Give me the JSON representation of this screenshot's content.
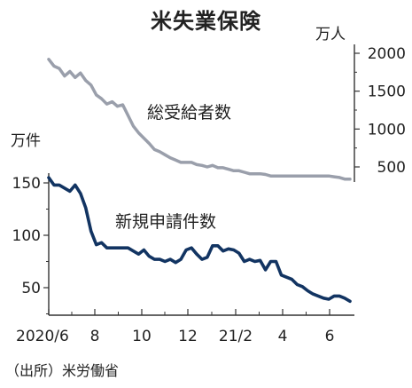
{
  "chart_data": {
    "type": "line",
    "title": "米失業保険",
    "source": "（出所）米労働省",
    "x_tick_labels": [
      "2020/6",
      "8",
      "10",
      "12",
      "21/2",
      "4",
      "6"
    ],
    "left_axis": {
      "unit": "万件",
      "ticks": [
        50,
        100,
        150
      ],
      "ylim": [
        30,
        165
      ]
    },
    "right_axis": {
      "unit": "万人",
      "ticks": [
        500,
        1000,
        1500,
        2000
      ],
      "ylim": [
        180,
        2080
      ]
    },
    "series": [
      {
        "name": "総受給者数",
        "axis": "right",
        "color": "#9a9fab",
        "values": [
          1920,
          1830,
          1800,
          1700,
          1760,
          1680,
          1740,
          1640,
          1580,
          1450,
          1400,
          1330,
          1360,
          1300,
          1320,
          1180,
          1040,
          950,
          880,
          810,
          730,
          700,
          660,
          620,
          590,
          560,
          560,
          560,
          530,
          520,
          500,
          520,
          490,
          490,
          470,
          450,
          450,
          430,
          410,
          410,
          410,
          400,
          380,
          380,
          380,
          380,
          380,
          380,
          380,
          380,
          380,
          380,
          380,
          380,
          370,
          360,
          340,
          340
        ]
      },
      {
        "name": "新規申請件数",
        "axis": "left",
        "color": "#123462",
        "values": [
          155,
          148,
          148,
          145,
          142,
          148,
          140,
          126,
          104,
          91,
          93,
          88,
          88,
          88,
          88,
          88,
          85,
          82,
          86,
          80,
          77,
          77,
          75,
          77,
          74,
          77,
          86,
          88,
          82,
          77,
          79,
          90,
          90,
          85,
          87,
          86,
          83,
          75,
          77,
          75,
          76,
          67,
          75,
          75,
          62,
          60,
          58,
          53,
          51,
          47,
          44,
          42,
          40,
          39,
          42,
          42,
          40,
          37
        ]
      }
    ]
  }
}
